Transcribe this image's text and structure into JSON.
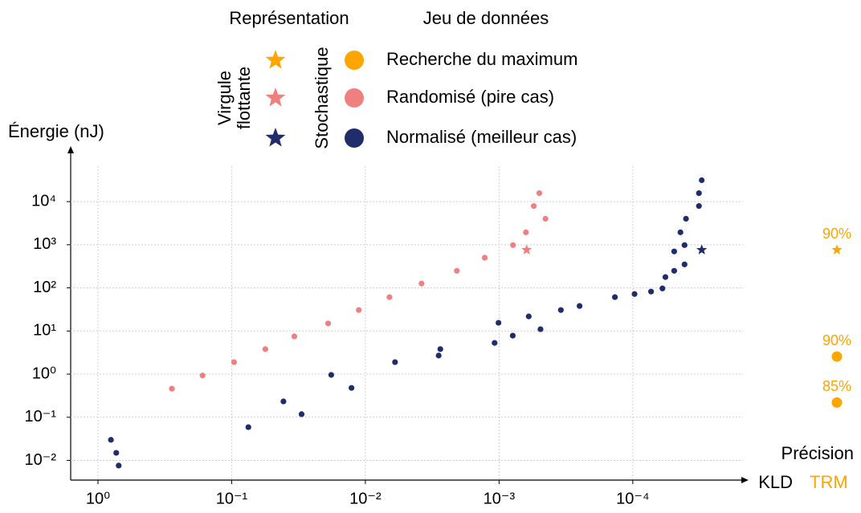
{
  "chart_data": {
    "type": "scatter",
    "y_label": "Énergie (nJ)",
    "x_label": "Précision",
    "x_sublabel": "KLD",
    "xscale": "log",
    "yscale": "log",
    "grid": true,
    "xlim": [
      1.6,
      1.5e-05
    ],
    "ylim": [
      0.0035,
      170000
    ],
    "xticks": [
      {
        "value": 1,
        "label": "10⁰"
      },
      {
        "value": 0.1,
        "label": "10⁻¹"
      },
      {
        "value": 0.01,
        "label": "10⁻²"
      },
      {
        "value": 0.001,
        "label": "10⁻³"
      },
      {
        "value": 0.0001,
        "label": "10⁻⁴"
      }
    ],
    "yticks": [
      {
        "value": 0.01,
        "label": "10⁻²"
      },
      {
        "value": 0.1,
        "label": "10⁻¹"
      },
      {
        "value": 1,
        "label": "10⁰"
      },
      {
        "value": 10,
        "label": "10¹"
      },
      {
        "value": 100,
        "label": "10²"
      },
      {
        "value": 1000,
        "label": "10³"
      },
      {
        "value": 10000,
        "label": "10⁴"
      }
    ],
    "legend": {
      "representation_title": "Représentation",
      "dataset_title": "Jeu de données",
      "float_label": [
        "Virgule",
        "flottante"
      ],
      "stochastic_label": "Stochastique"
    },
    "datasets": [
      {
        "name": "Recherche du maximum",
        "color": "#ffa500"
      },
      {
        "name": "Randomisé (pire cas)",
        "color": "#f08080"
      },
      {
        "name": "Normalisé (meilleur cas)",
        "color": "#1f2d6b"
      }
    ],
    "series": [
      {
        "color": "#f08080",
        "marker": "circle",
        "x": [
          0.28,
          0.165,
          0.096,
          0.056,
          0.034,
          0.019,
          0.0112,
          0.0066,
          0.0038,
          0.00207,
          0.00128,
          0.000787,
          0.00063,
          0.00055,
          0.00045,
          0.0005
        ],
        "values": [
          0.46,
          0.93,
          1.9,
          3.8,
          7.5,
          15,
          30.6,
          61,
          126,
          249,
          500,
          980,
          1940,
          7900,
          4000,
          15700
        ]
      },
      {
        "color": "#f08080",
        "marker": "star",
        "x": [
          0.000622
        ],
        "values": [
          760
        ]
      },
      {
        "color": "#1f2d6b",
        "marker": "circle",
        "x": [
          0.8,
          0.73,
          0.7,
          0.075,
          0.041,
          0.03,
          0.018,
          0.0127,
          0.006,
          0.00283,
          0.00275,
          0.00108,
          0.00101,
          0.00079,
          0.0006,
          0.00049,
          0.000345,
          0.00025,
          0.000136,
          9.7e-05,
          7.3e-05,
          6e-05,
          5.7e-05,
          4.9e-05,
          4.9e-05,
          4.4e-05,
          4.1e-05,
          4.1e-05,
          4e-05,
          3.2e-05,
          3.2e-05,
          3.05e-05
        ],
        "values": [
          0.03,
          0.015,
          0.0076,
          0.059,
          0.233,
          0.118,
          0.96,
          0.48,
          1.9,
          2.7,
          3.8,
          5.3,
          15.5,
          7.8,
          21.8,
          11,
          30.6,
          38,
          61,
          72,
          82,
          97,
          178,
          249,
          700,
          1940,
          980,
          350,
          4000,
          7900,
          15700,
          31300
        ]
      },
      {
        "color": "#1f2d6b",
        "marker": "star",
        "x": [
          3.05e-05
        ],
        "values": [
          760
        ]
      }
    ],
    "trm": {
      "label": "TRM",
      "color": "#ffa500",
      "markers": [
        "star",
        "circle",
        "circle"
      ],
      "values": [
        760,
        2.56,
        0.22
      ],
      "accuracy_labels": [
        "90%",
        "90%",
        "85%"
      ]
    }
  }
}
